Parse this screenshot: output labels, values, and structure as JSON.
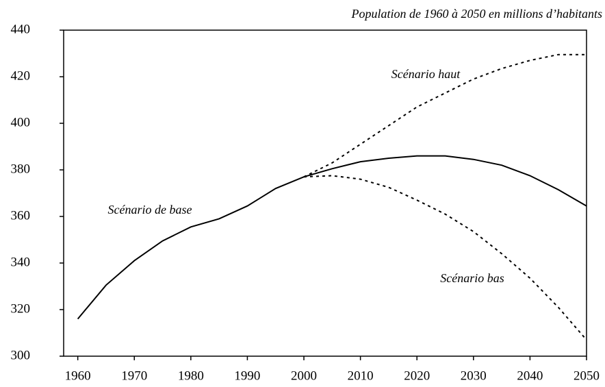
{
  "chart_data": {
    "type": "line",
    "title": "Population de 1960 à 2050 en millions d’habitants",
    "x": [
      1960,
      1965,
      1970,
      1975,
      1980,
      1985,
      1990,
      1995,
      2000,
      2005,
      2010,
      2015,
      2020,
      2025,
      2030,
      2035,
      2040,
      2045,
      2050
    ],
    "series": [
      {
        "name": "Scénario de base",
        "color": "#000000",
        "style": "solid",
        "values": [
          316,
          330.5,
          341,
          349.5,
          355.5,
          359,
          364.5,
          372,
          377,
          380.5,
          383.5,
          385,
          386,
          386,
          384.5,
          382,
          377.5,
          371.5,
          364.5
        ]
      },
      {
        "name": "Scénario haut",
        "color": "#000000",
        "style": "dashed",
        "values": [
          null,
          null,
          null,
          null,
          null,
          null,
          null,
          null,
          377,
          383,
          391,
          399,
          407,
          413,
          419,
          423.5,
          427,
          429.5,
          429.5
        ]
      },
      {
        "name": "Scénario bas",
        "color": "#000000",
        "style": "dashed",
        "values": [
          null,
          null,
          null,
          null,
          null,
          null,
          null,
          null,
          377,
          377.5,
          376,
          372.5,
          367,
          361,
          353.5,
          344,
          333.5,
          321,
          307
        ]
      }
    ],
    "xlim": [
      1957.5,
      2050
    ],
    "xticks": [
      1960,
      1970,
      1980,
      1990,
      2000,
      2010,
      2020,
      2030,
      2040,
      2050
    ],
    "ylim": [
      300,
      440
    ],
    "yticks": [
      300,
      320,
      340,
      360,
      380,
      400,
      420,
      440
    ],
    "grid": false
  }
}
